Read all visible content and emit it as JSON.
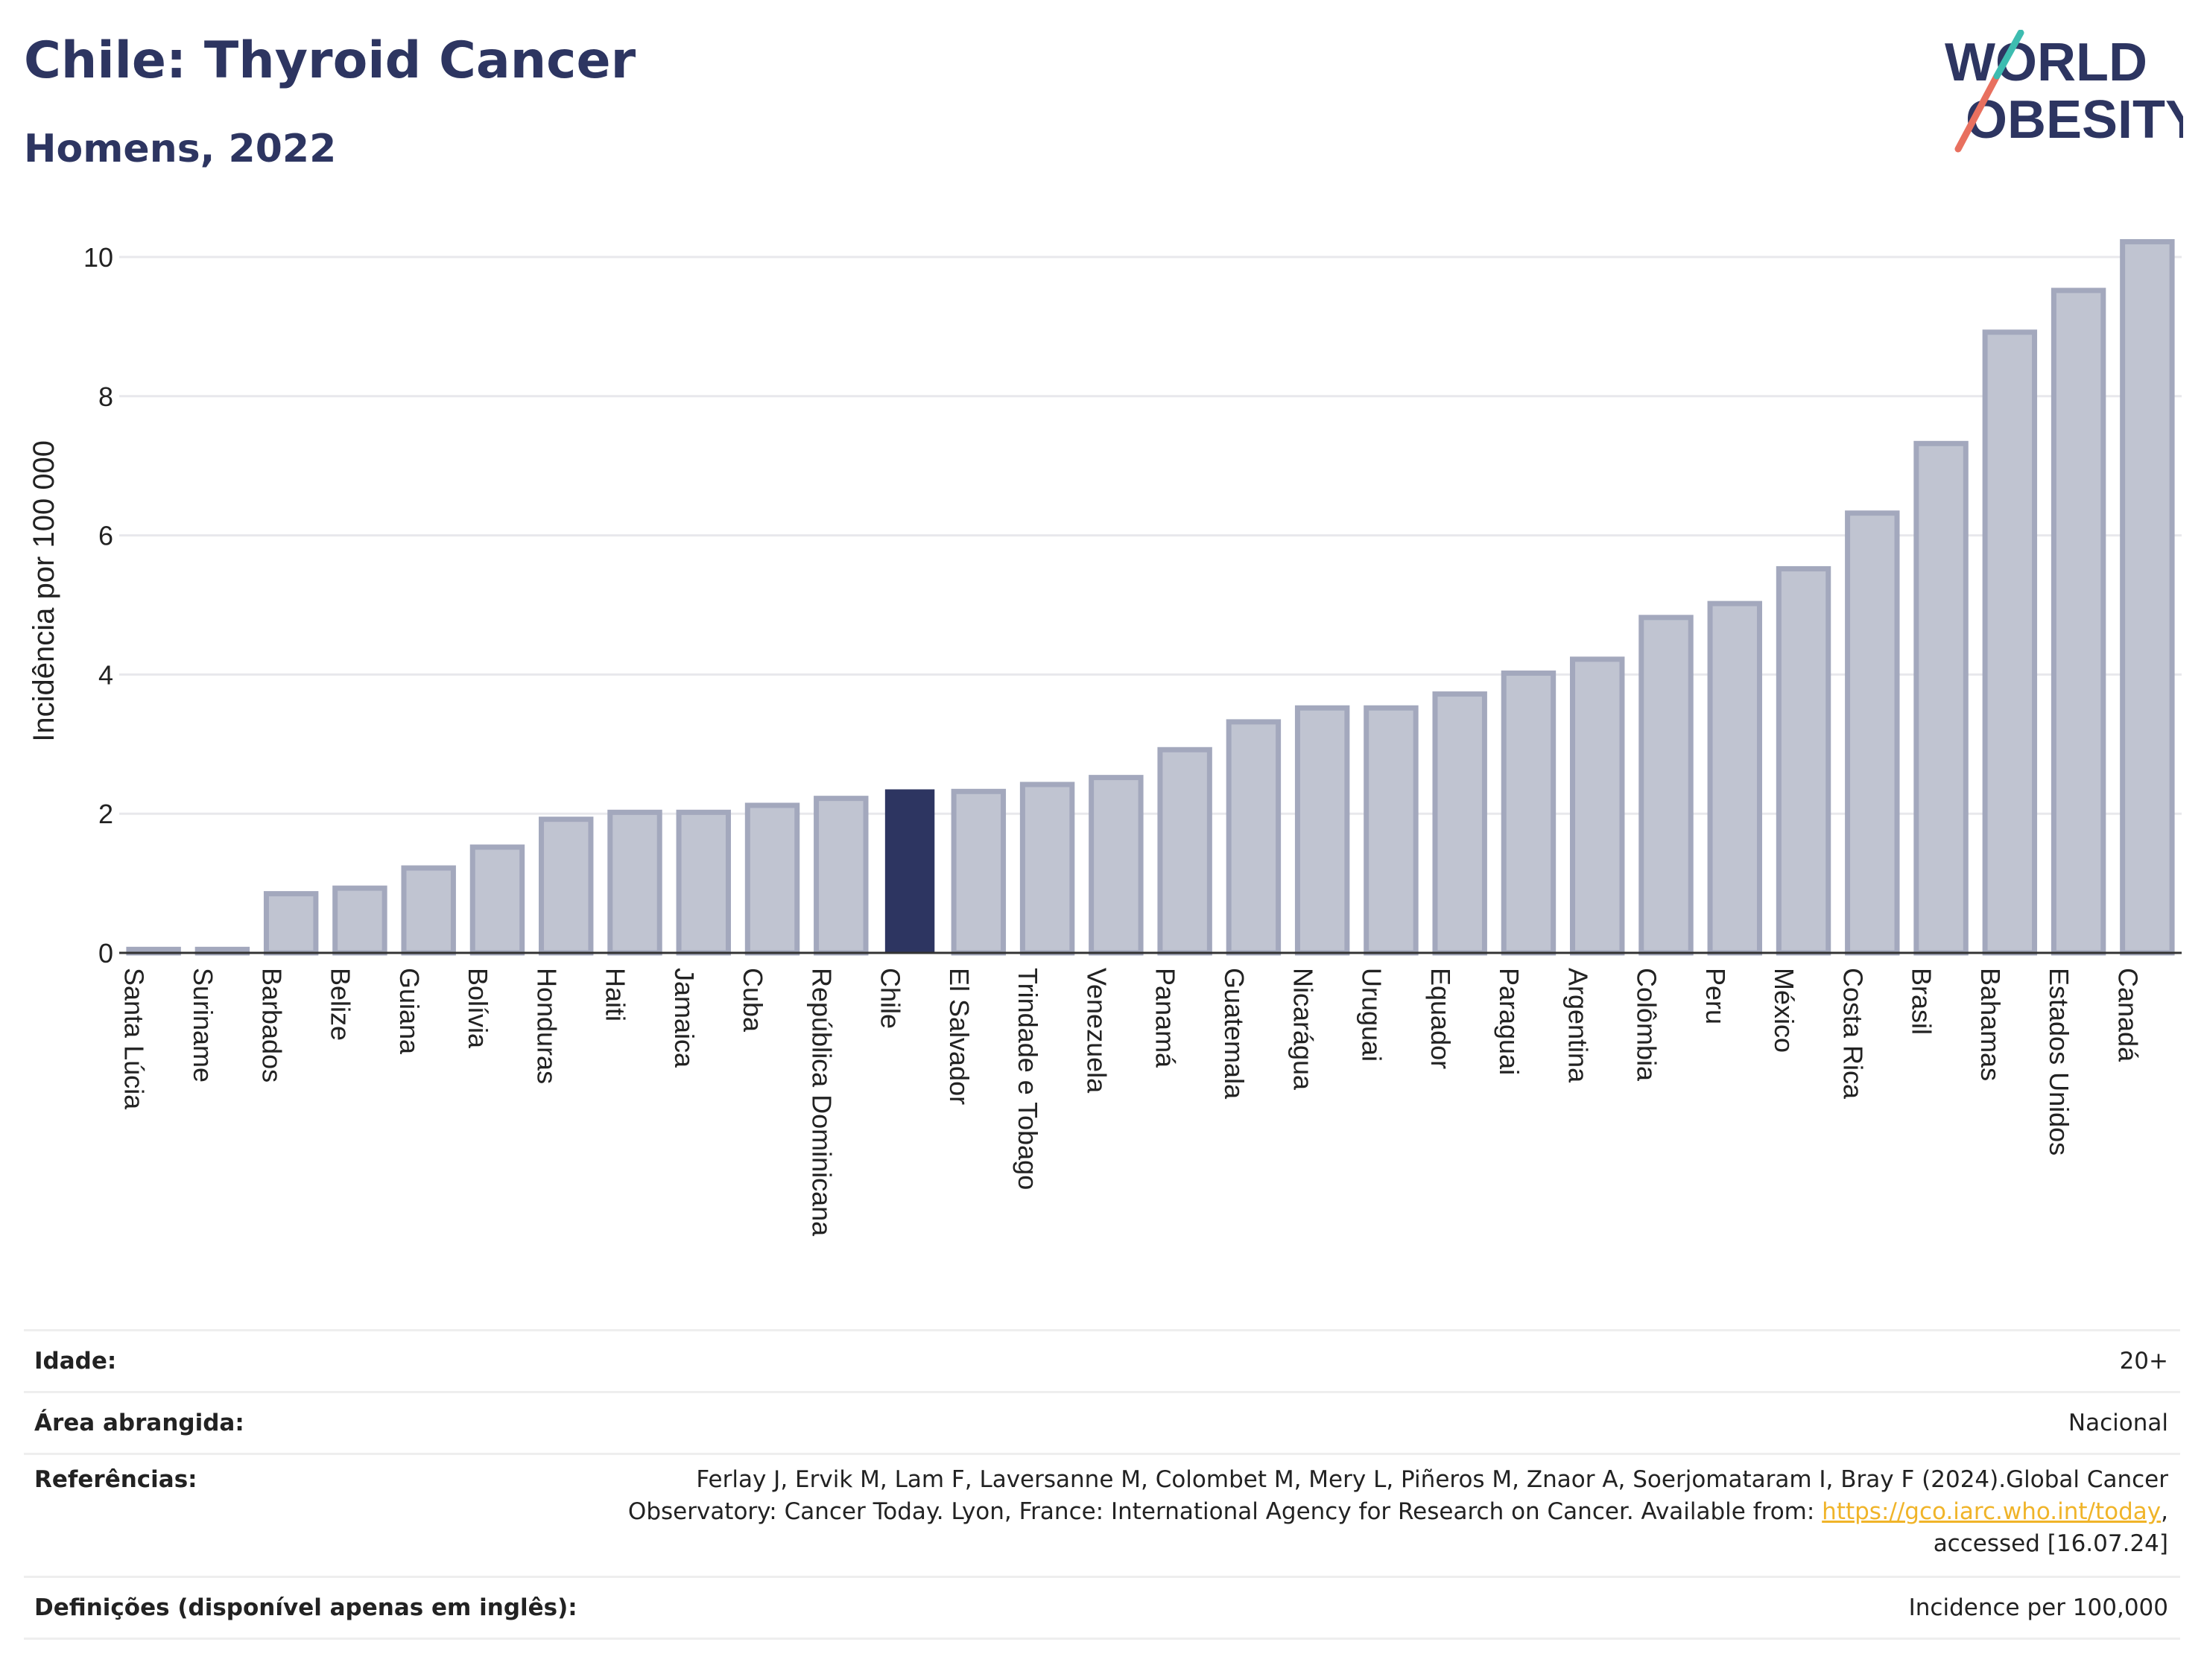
{
  "header": {
    "title": "Chile: Thyroid Cancer",
    "subtitle": "Homens, 2022"
  },
  "logo": {
    "line1": "WORLD",
    "line2": "OBESITY"
  },
  "chart_data": {
    "type": "bar",
    "ylabel": "Incidência por 100 000",
    "xlabel": "",
    "ylim": [
      0,
      10.5
    ],
    "yticks": [
      0,
      2,
      4,
      6,
      8,
      10
    ],
    "grid": true,
    "highlight": "Chile",
    "colors": {
      "bar": "#c0c4d1",
      "bar_border": "#a3a8bd",
      "highlight": "#2d3561",
      "axis": "#333333",
      "grid": "#e8e8ec"
    },
    "categories": [
      "Santa Lúcia",
      "Suriname",
      "Barbados",
      "Belize",
      "Guiana",
      "Bolívia",
      "Honduras",
      "Haiti",
      "Jamaica",
      "Cuba",
      "República Dominicana",
      "Chile",
      "El Salvador",
      "Trindade e Tobago",
      "Venezuela",
      "Panamá",
      "Guatemala",
      "Nicarágua",
      "Uruguai",
      "Equador",
      "Paraguai",
      "Argentina",
      "Colômbia",
      "Peru",
      "México",
      "Costa Rica",
      "Brasil",
      "Bahamas",
      "Estados Unidos",
      "Canadá"
    ],
    "values": [
      0.05,
      0.05,
      0.85,
      0.93,
      1.22,
      1.52,
      1.92,
      2.02,
      2.02,
      2.12,
      2.22,
      2.35,
      2.32,
      2.42,
      2.52,
      2.92,
      3.32,
      3.52,
      3.52,
      3.72,
      4.02,
      4.22,
      4.82,
      5.02,
      5.52,
      6.32,
      7.32,
      8.92,
      9.52,
      10.22
    ]
  },
  "meta": {
    "age_label": "Idade:",
    "age_value": "20+",
    "area_label": "Área abrangida:",
    "area_value": "Nacional",
    "ref_label": "Referências:",
    "ref_text_1": "Ferlay J, Ervik M, Lam F, Laversanne M, Colombet M, Mery L, Piñeros M, Znaor A, Soerjomataram I, Bray F (2024).Global Cancer",
    "ref_text_2": "Observatory: Cancer Today. Lyon, France: International Agency for Research on Cancer. Available from: ",
    "ref_link": "https://gco.iarc.who.int/today",
    "ref_text_3": ",",
    "ref_text_4": "accessed [16.07.24]",
    "def_label": "Definições (disponível apenas em inglês):",
    "def_value": "Incidence per 100,000"
  }
}
